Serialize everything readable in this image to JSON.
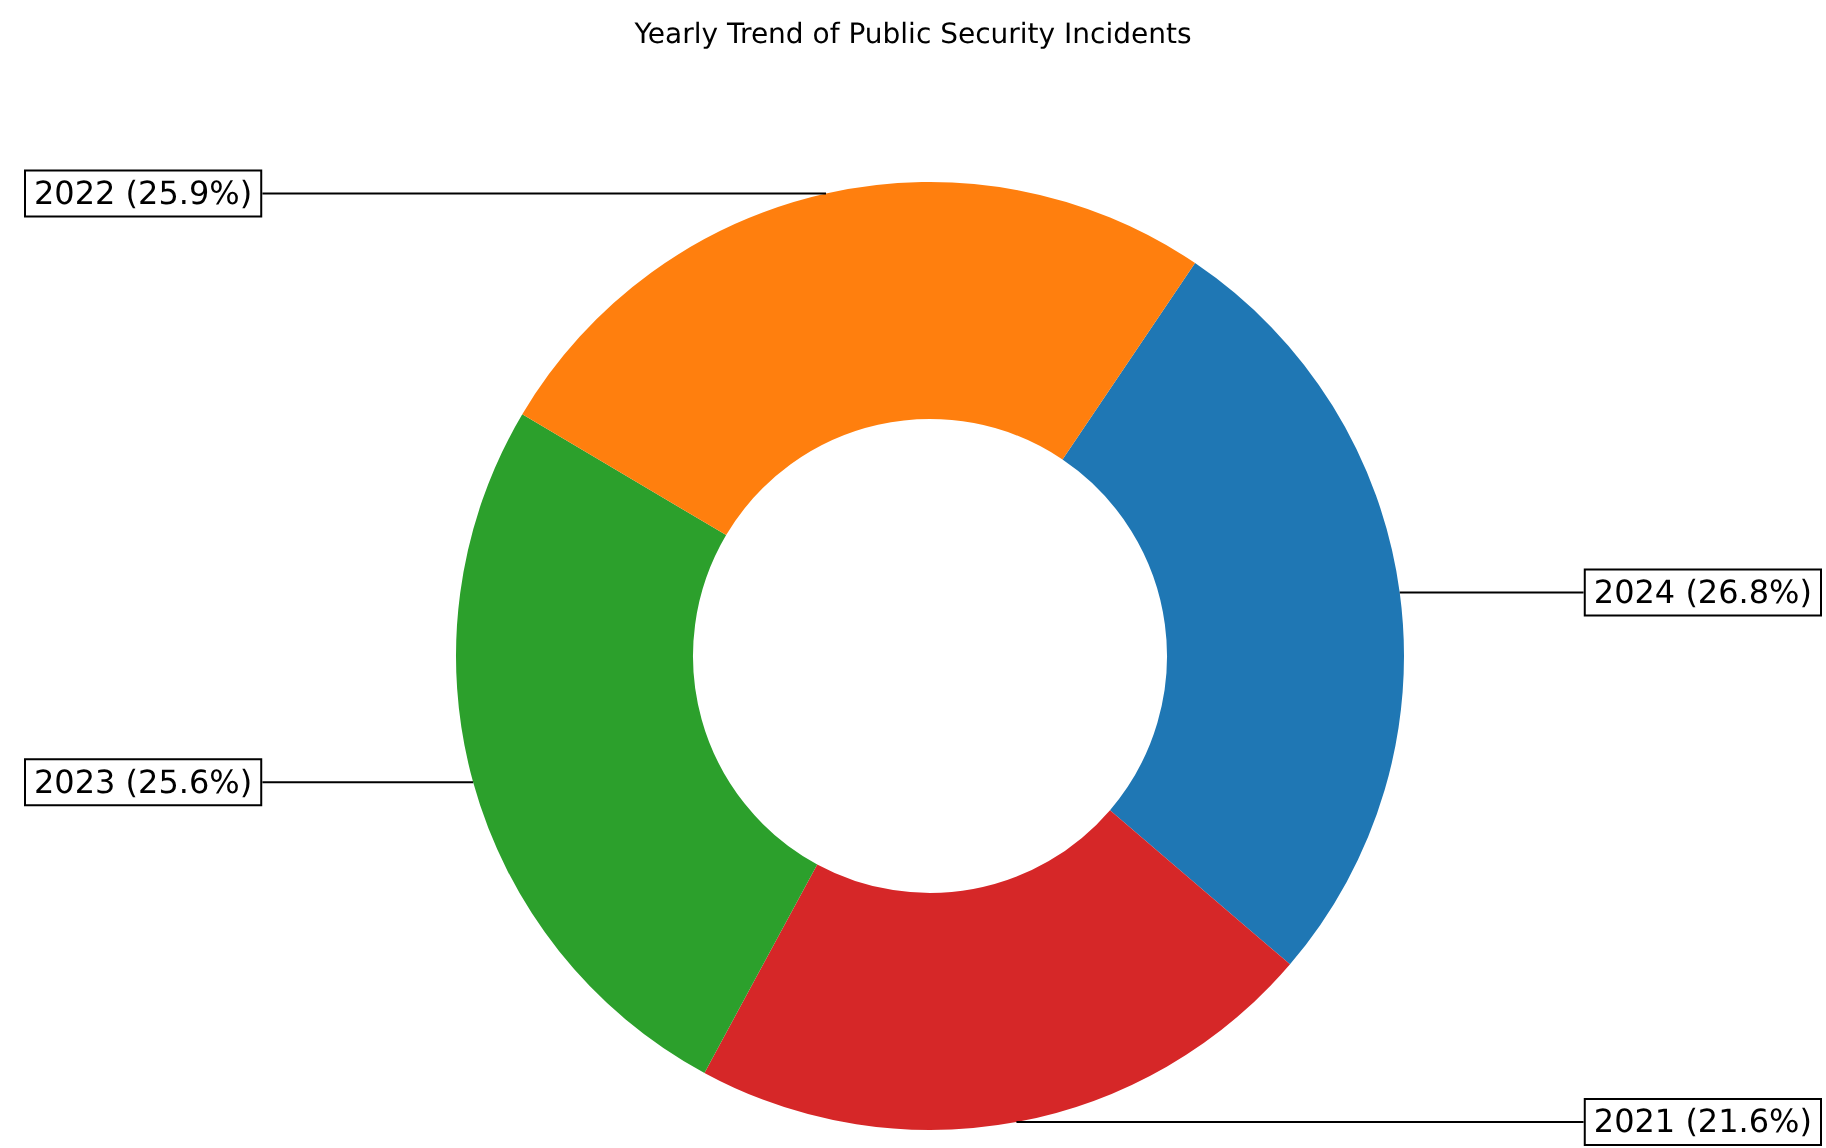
{
  "chart_data": {
    "type": "donut",
    "title": "Yearly Trend of Public Security Incidents",
    "categories": [
      "2024 (26.8%)",
      "2021 (21.6%)",
      "2023 (25.6%)",
      "2022 (25.9%)"
    ],
    "values": [
      26.8,
      21.6,
      25.6,
      25.9
    ],
    "colors": [
      "#1f77b4",
      "#d62728",
      "#2ca02c",
      "#ff7f0e"
    ],
    "legend": false
  }
}
